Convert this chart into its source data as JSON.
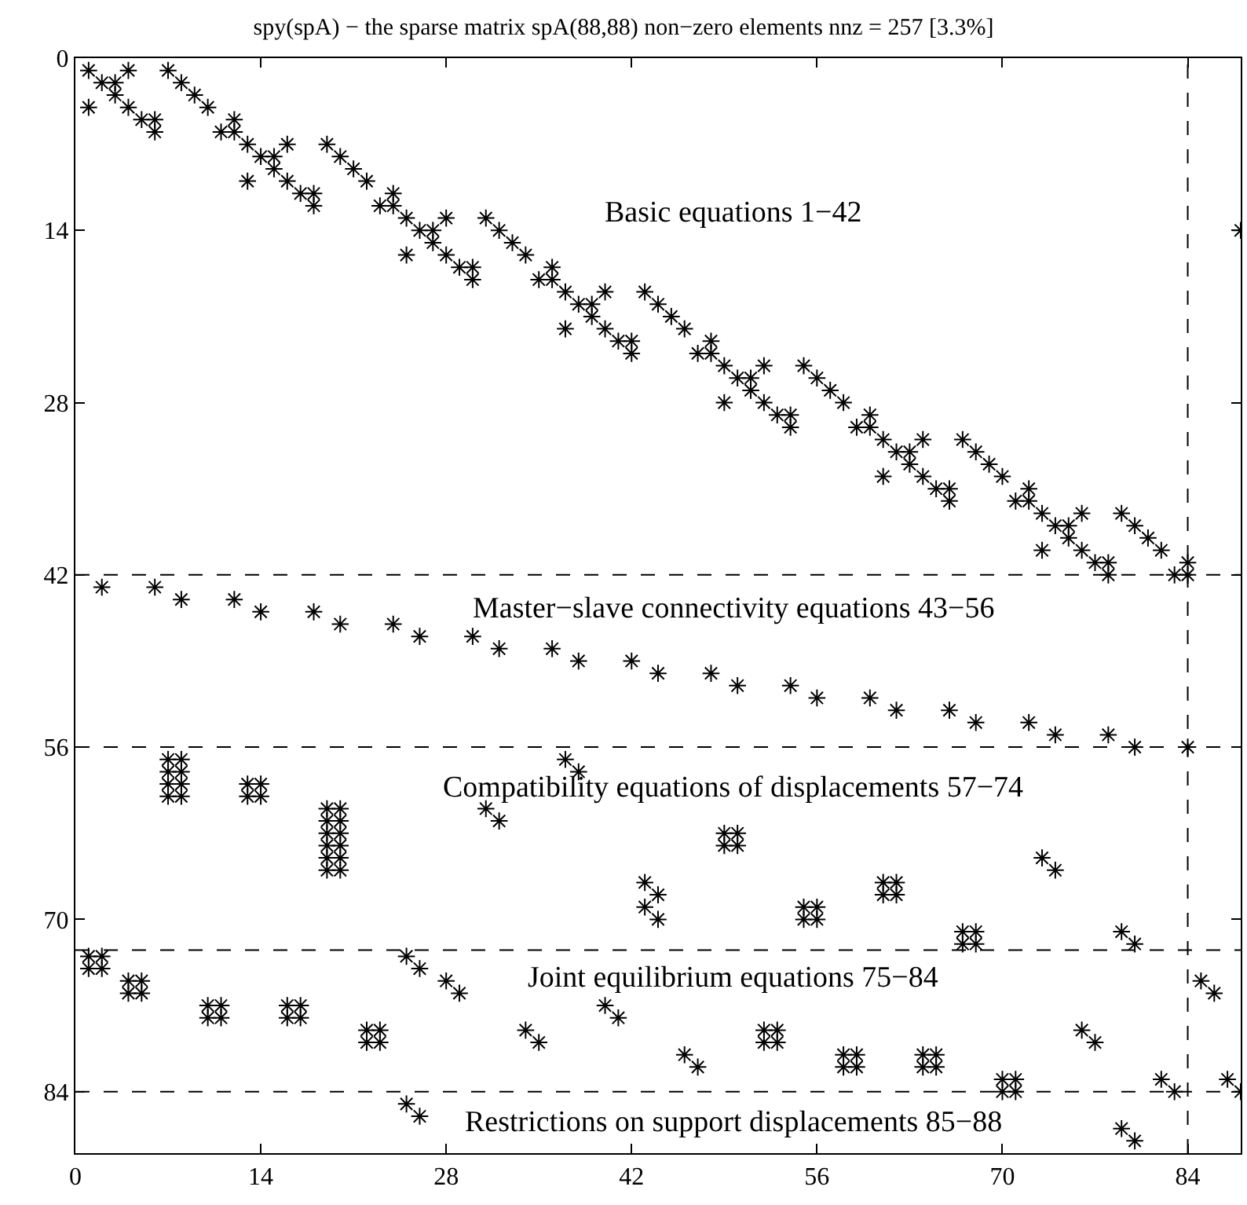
{
  "chart_data": {
    "type": "scatter",
    "title": "spy(spA) − the sparse matrix spA(88,88) non−zero elements nnz = 257 [3.3%]",
    "xlim": [
      0,
      88
    ],
    "ylim": [
      89,
      0
    ],
    "xticks": [
      0,
      14,
      28,
      42,
      56,
      70,
      84
    ],
    "yticks": [
      0,
      14,
      28,
      42,
      56,
      70,
      84
    ],
    "marker": "cross",
    "series": [
      {
        "color": "#000000",
        "x": [
          1,
          4,
          7,
          2,
          3,
          8,
          3,
          9,
          1,
          4,
          10,
          5,
          6,
          12,
          6,
          11,
          12,
          13,
          16,
          19,
          14,
          15,
          20,
          15,
          21,
          13,
          16,
          22,
          17,
          18,
          24,
          18,
          23,
          24,
          25,
          28,
          31,
          26,
          27,
          32,
          27,
          33,
          25,
          28,
          34,
          29,
          30,
          36,
          30,
          35,
          36,
          37,
          40,
          43,
          38,
          39,
          44,
          39,
          45,
          37,
          40,
          46,
          41,
          42,
          48,
          42,
          47,
          48,
          49,
          52,
          55,
          50,
          51,
          56,
          51,
          57,
          49,
          52,
          58,
          53,
          54,
          60,
          54,
          59,
          60,
          61,
          64,
          67,
          62,
          63,
          68,
          63,
          69,
          61,
          64,
          70,
          65,
          66,
          72,
          66,
          71,
          72,
          73,
          76,
          79,
          74,
          75,
          80,
          75,
          81,
          73,
          76,
          82,
          77,
          78,
          84,
          78,
          83,
          84,
          88
        ],
        "values": [
          1,
          1,
          1,
          2,
          2,
          2,
          3,
          3,
          4,
          4,
          4,
          5,
          5,
          5,
          6,
          6,
          6,
          7,
          7,
          7,
          8,
          8,
          8,
          9,
          9,
          10,
          10,
          10,
          11,
          11,
          11,
          12,
          12,
          12,
          13,
          13,
          13,
          14,
          14,
          14,
          15,
          15,
          16,
          16,
          16,
          17,
          17,
          17,
          18,
          18,
          18,
          19,
          19,
          19,
          20,
          20,
          20,
          21,
          21,
          22,
          22,
          22,
          23,
          23,
          23,
          24,
          24,
          24,
          25,
          25,
          25,
          26,
          26,
          26,
          27,
          27,
          28,
          28,
          28,
          29,
          29,
          29,
          30,
          30,
          30,
          31,
          31,
          31,
          32,
          32,
          32,
          33,
          33,
          34,
          34,
          34,
          35,
          35,
          35,
          36,
          36,
          36,
          37,
          37,
          37,
          38,
          38,
          38,
          39,
          39,
          40,
          40,
          40,
          41,
          41,
          41,
          42,
          42,
          42,
          14
        ]
      },
      {
        "color": "#000000",
        "x": [
          2,
          6,
          8,
          12,
          14,
          18,
          20,
          24,
          26,
          30,
          32,
          36,
          38,
          42,
          44,
          48,
          50,
          54,
          56,
          60,
          62,
          66,
          68,
          72,
          74,
          78,
          80,
          84
        ],
        "values": [
          43,
          43,
          44,
          44,
          45,
          45,
          46,
          46,
          47,
          47,
          48,
          48,
          49,
          49,
          50,
          50,
          51,
          51,
          52,
          52,
          53,
          53,
          54,
          54,
          55,
          55,
          56,
          56
        ]
      },
      {
        "color": "#000000",
        "x": [
          7,
          8,
          7,
          8,
          7,
          8,
          7,
          8,
          13,
          14,
          13,
          14,
          19,
          20,
          19,
          20,
          19,
          20,
          19,
          20,
          19,
          20,
          19,
          20,
          37,
          38,
          31,
          32,
          49,
          50,
          49,
          50,
          73,
          74,
          43,
          44,
          43,
          44,
          61,
          62,
          61,
          62,
          55,
          56,
          55,
          56,
          67,
          68,
          67,
          68,
          79,
          80
        ],
        "values": [
          57,
          57,
          58,
          58,
          59,
          59,
          60,
          60,
          59,
          59,
          60,
          60,
          61,
          61,
          62,
          62,
          63,
          63,
          64,
          64,
          65,
          65,
          66,
          66,
          57,
          58,
          61,
          62,
          63,
          63,
          64,
          64,
          65,
          66,
          67,
          68,
          69,
          70,
          67,
          67,
          68,
          68,
          69,
          69,
          70,
          70,
          71,
          71,
          72,
          72,
          71,
          72
        ]
      },
      {
        "color": "#000000",
        "x": [
          1,
          2,
          1,
          2,
          4,
          5,
          4,
          5,
          10,
          11,
          10,
          11,
          16,
          17,
          16,
          17,
          22,
          23,
          22,
          23,
          25,
          26,
          28,
          29,
          34,
          35,
          40,
          41,
          46,
          47,
          52,
          53,
          52,
          53,
          58,
          59,
          58,
          59,
          64,
          65,
          64,
          65,
          70,
          71,
          70,
          71,
          76,
          77,
          82,
          83,
          85,
          86,
          87,
          88
        ],
        "values": [
          73,
          73,
          74,
          74,
          75,
          75,
          76,
          76,
          77,
          77,
          78,
          78,
          77,
          77,
          78,
          78,
          79,
          79,
          80,
          80,
          73,
          74,
          75,
          76,
          79,
          80,
          77,
          78,
          81,
          82,
          79,
          79,
          80,
          80,
          81,
          81,
          82,
          82,
          81,
          81,
          82,
          82,
          83,
          83,
          84,
          84,
          79,
          80,
          83,
          84,
          75,
          76,
          83,
          84
        ]
      },
      {
        "color": "#000000",
        "x": [
          25,
          26,
          79,
          80
        ],
        "values": [
          85,
          86,
          87,
          88
        ]
      }
    ],
    "ref_lines": [
      {
        "axis": "y",
        "value": 42,
        "color": "#000000",
        "line_style": "dashed"
      },
      {
        "axis": "y",
        "value": 56,
        "color": "#000000",
        "line_style": "dashed"
      },
      {
        "axis": "y",
        "value": 72.5,
        "color": "#000000",
        "line_style": "dashed"
      },
      {
        "axis": "y",
        "value": 84,
        "color": "#000000",
        "line_style": "dashed"
      },
      {
        "axis": "x",
        "value": 84,
        "color": "#000000",
        "line_style": "dashed"
      }
    ],
    "annotations": [
      "Basic equations 1−42",
      "Master−slave connectivity equations 43−56",
      "Compatibility equations of displacements 57−74",
      "Joint equilibrium equations 75−84",
      "Restrictions on support displacements 85−88"
    ]
  }
}
